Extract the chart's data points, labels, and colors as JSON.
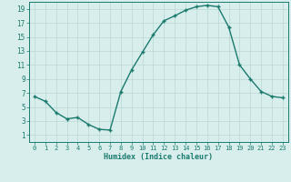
{
  "x": [
    0,
    1,
    2,
    3,
    4,
    5,
    6,
    7,
    8,
    9,
    10,
    11,
    12,
    13,
    14,
    15,
    16,
    17,
    18,
    19,
    20,
    21,
    22,
    23
  ],
  "y": [
    6.5,
    5.8,
    4.2,
    3.3,
    3.5,
    2.5,
    1.8,
    1.7,
    7.2,
    10.3,
    12.8,
    15.3,
    17.3,
    18.0,
    18.8,
    19.3,
    19.5,
    19.3,
    16.4,
    11.0,
    9.0,
    7.2,
    6.5,
    6.3
  ],
  "xlabel": "Humidex (Indice chaleur)",
  "line_color": "#1a7a6e",
  "bg_color": "#d8eeec",
  "grid_color": "#b8d8d4",
  "tick_color": "#1a7a6e",
  "label_color": "#1a7a6e",
  "xlim": [
    -0.5,
    23.5
  ],
  "ylim": [
    0,
    20
  ],
  "yticks": [
    1,
    3,
    5,
    7,
    9,
    11,
    13,
    15,
    17,
    19
  ],
  "xticks": [
    0,
    1,
    2,
    3,
    4,
    5,
    6,
    7,
    8,
    9,
    10,
    11,
    12,
    13,
    14,
    15,
    16,
    17,
    18,
    19,
    20,
    21,
    22,
    23
  ]
}
